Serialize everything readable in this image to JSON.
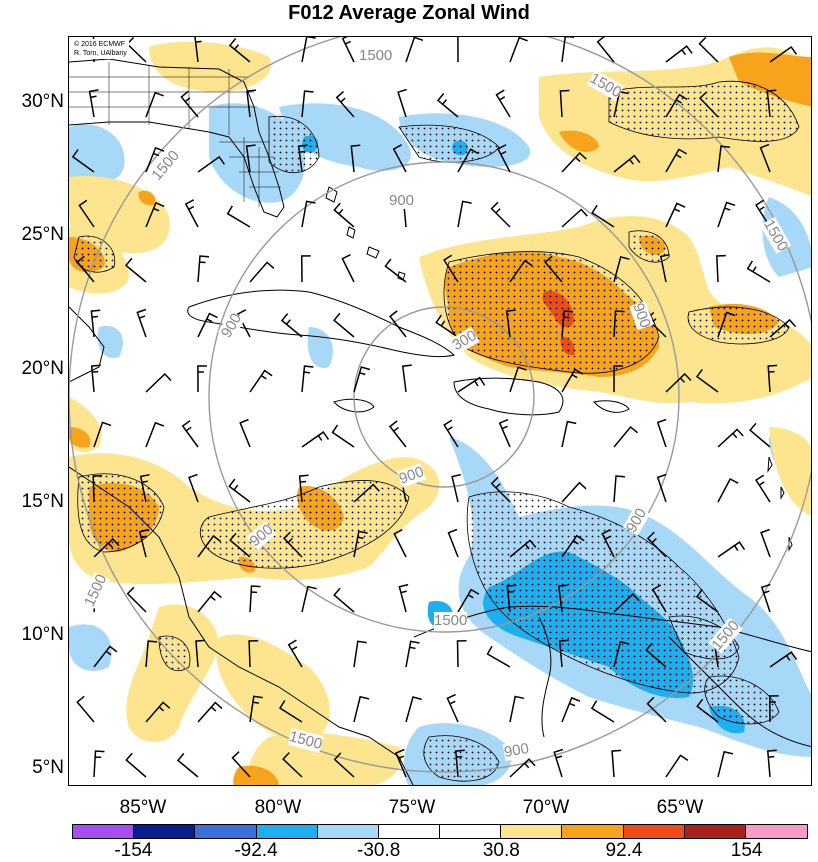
{
  "title": "F012 Average Zonal Wind",
  "credit": {
    "line1": "© 2016 ECMWF",
    "line2": "R. Torn, UAlbany"
  },
  "lat_labels": [
    "30°N",
    "25°N",
    "20°N",
    "15°N",
    "10°N",
    "5°N"
  ],
  "lon_labels": [
    "85°W",
    "80°W",
    "75°W",
    "70°W",
    "65°W"
  ],
  "contour_labels": [
    "1500",
    "1500",
    "1500",
    "1500",
    "900",
    "900",
    "900",
    "900",
    "900",
    "900",
    "300",
    "900",
    "1500",
    "1500",
    "1500",
    "900",
    "1500"
  ],
  "colorbar": {
    "colors": [
      "#a64ff0",
      "#0a1f8f",
      "#3b6fd9",
      "#1eaff0",
      "#a8d8f7",
      "#ffffff",
      "#ffffff",
      "#fde58f",
      "#f7a31c",
      "#f04c17",
      "#a8211c",
      "#f89bc9"
    ],
    "labels": [
      "-154",
      "-92.4",
      "-30.8",
      "30.8",
      "92.4",
      "154"
    ]
  }
}
